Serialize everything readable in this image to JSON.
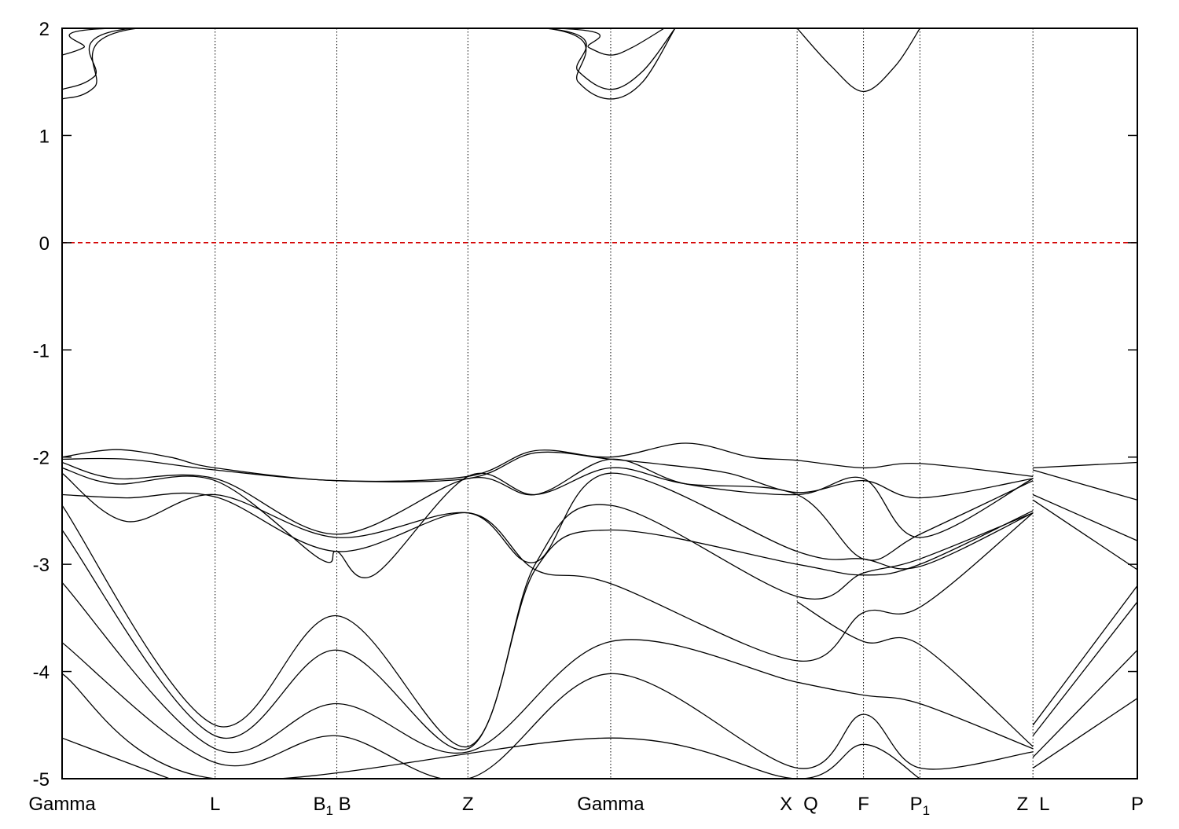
{
  "chart_data": {
    "type": "line",
    "title": "",
    "xlabel": "",
    "ylabel": "",
    "ylim": [
      -5,
      2
    ],
    "yticks": [
      "2",
      "1",
      "0",
      "-1",
      "-2",
      "-3",
      "-4",
      "-5"
    ],
    "ytick_values": [
      2,
      1,
      0,
      -1,
      -2,
      -3,
      -4,
      -5
    ],
    "grid": "vertical dotted lines at high-symmetry points",
    "fermi_level": 0,
    "kpoints": [
      {
        "label": "Gamma",
        "x": 0.0
      },
      {
        "label": "L",
        "x": 0.1423
      },
      {
        "label": "B",
        "sub": "1",
        "x": 0.2555,
        "label_after": " B"
      },
      {
        "label": "Z",
        "x": 0.3774
      },
      {
        "label": "Gamma",
        "x": 0.5102
      },
      {
        "label": "X",
        "x": 0.6836,
        "label_align": "end"
      },
      {
        "label": "Q",
        "x": 0.6836,
        "label_align": "start"
      },
      {
        "label": "F",
        "x": 0.7453
      },
      {
        "label": "P",
        "sub": "1",
        "x": 0.7978
      },
      {
        "label": "Z",
        "x": 0.9029,
        "label_align": "end"
      },
      {
        "label": "L",
        "x": 0.9029,
        "label_align": "start"
      },
      {
        "label": "P",
        "x": 1.0
      }
    ],
    "series": [
      {
        "values": [
          [
            0,
            1.75
          ],
          [
            0.02,
            1.82
          ],
          [
            0.045,
            2.0
          ],
          [
            0.46,
            2.0
          ],
          [
            0.49,
            1.82
          ],
          [
            0.5102,
            1.75
          ],
          [
            0.53,
            1.82
          ],
          [
            0.56,
            2.0
          ]
        ]
      },
      {
        "values": [
          [
            0,
            1.43
          ],
          [
            0.03,
            1.55
          ],
          [
            0.065,
            2.0
          ],
          [
            0.45,
            2.0
          ],
          [
            0.48,
            1.6
          ],
          [
            0.5102,
            1.43
          ],
          [
            0.54,
            1.6
          ],
          [
            0.57,
            2.0
          ]
        ]
      },
      {
        "values": [
          [
            0,
            1.34
          ],
          [
            0.03,
            1.45
          ],
          [
            0.07,
            2.0
          ],
          [
            0.45,
            2.0
          ],
          [
            0.48,
            1.5
          ],
          [
            0.5102,
            1.34
          ],
          [
            0.54,
            1.5
          ],
          [
            0.57,
            2.0
          ]
        ]
      },
      {
        "values": [
          [
            0.6836,
            2.0
          ],
          [
            0.715,
            1.65
          ],
          [
            0.7453,
            1.41
          ],
          [
            0.775,
            1.65
          ],
          [
            0.7978,
            2.0
          ]
        ]
      },
      {
        "values": [
          [
            0,
            -2.0
          ],
          [
            0.05,
            -1.93
          ],
          [
            0.1,
            -2.0
          ],
          [
            0.1423,
            -2.1
          ],
          [
            0.2555,
            -2.22
          ],
          [
            0.3774,
            -2.18
          ],
          [
            0.44,
            -1.94
          ],
          [
            0.5102,
            -2.0
          ],
          [
            0.58,
            -1.87
          ],
          [
            0.64,
            -2.0
          ],
          [
            0.6836,
            -2.03
          ],
          [
            0.7453,
            -2.1
          ],
          [
            0.7978,
            -2.06
          ],
          [
            0.9029,
            -2.18
          ]
        ]
      },
      {
        "values": [
          [
            0,
            -2.02
          ],
          [
            0.06,
            -2.02
          ],
          [
            0.1423,
            -2.12
          ],
          [
            0.2555,
            -2.22
          ],
          [
            0.3774,
            -2.2
          ],
          [
            0.44,
            -1.96
          ],
          [
            0.5102,
            -2.02
          ],
          [
            0.56,
            -2.07
          ],
          [
            0.62,
            -2.15
          ],
          [
            0.6836,
            -2.33
          ],
          [
            0.7453,
            -2.22
          ],
          [
            0.7978,
            -2.38
          ],
          [
            0.9029,
            -2.2
          ]
        ]
      },
      {
        "values": [
          [
            0,
            -2.05
          ],
          [
            0.05,
            -2.2
          ],
          [
            0.1423,
            -2.2
          ],
          [
            0.2555,
            -2.72
          ],
          [
            0.3774,
            -2.2
          ],
          [
            0.44,
            -2.35
          ],
          [
            0.5102,
            -2.02
          ],
          [
            0.58,
            -2.25
          ],
          [
            0.6836,
            -2.35
          ],
          [
            0.7453,
            -2.2
          ],
          [
            0.7978,
            -2.75
          ],
          [
            0.9029,
            -2.2
          ]
        ]
      },
      {
        "values": [
          [
            0,
            -2.1
          ],
          [
            0.05,
            -2.25
          ],
          [
            0.1423,
            -2.22
          ],
          [
            0.24,
            -2.95
          ],
          [
            0.2555,
            -2.88
          ],
          [
            0.29,
            -3.1
          ],
          [
            0.3774,
            -2.18
          ],
          [
            0.44,
            -2.35
          ],
          [
            0.5102,
            -2.1
          ],
          [
            0.58,
            -2.25
          ],
          [
            0.6836,
            -2.35
          ],
          [
            0.7453,
            -2.95
          ],
          [
            0.7978,
            -2.72
          ],
          [
            0.9029,
            -2.22
          ]
        ]
      },
      {
        "values": [
          [
            0,
            -2.15
          ],
          [
            0.06,
            -2.6
          ],
          [
            0.1423,
            -2.35
          ],
          [
            0.2555,
            -2.75
          ],
          [
            0.3774,
            -2.52
          ],
          [
            0.44,
            -2.98
          ],
          [
            0.5102,
            -2.15
          ],
          [
            0.6836,
            -2.88
          ],
          [
            0.7453,
            -2.95
          ],
          [
            0.7978,
            -3.02
          ],
          [
            0.9029,
            -2.52
          ]
        ]
      },
      {
        "values": [
          [
            0,
            -2.35
          ],
          [
            0.06,
            -2.38
          ],
          [
            0.1423,
            -2.37
          ],
          [
            0.2555,
            -2.88
          ],
          [
            0.3774,
            -2.52
          ],
          [
            0.44,
            -3.05
          ],
          [
            0.5102,
            -3.18
          ],
          [
            0.6836,
            -3.9
          ],
          [
            0.7453,
            -3.45
          ],
          [
            0.7978,
            -3.4
          ],
          [
            0.9029,
            -2.52
          ]
        ]
      },
      {
        "values": [
          [
            0,
            -2.45
          ],
          [
            0.1423,
            -4.5
          ],
          [
            0.2555,
            -3.48
          ],
          [
            0.3774,
            -4.7
          ],
          [
            0.44,
            -3.0
          ],
          [
            0.5102,
            -2.45
          ],
          [
            0.6836,
            -3.3
          ],
          [
            0.7453,
            -3.08
          ],
          [
            0.7978,
            -2.95
          ],
          [
            0.9029,
            -2.52
          ]
        ]
      },
      {
        "values": [
          [
            0,
            -2.68
          ],
          [
            0.1423,
            -4.6
          ],
          [
            0.2555,
            -3.8
          ],
          [
            0.3774,
            -4.72
          ],
          [
            0.44,
            -3.05
          ],
          [
            0.5102,
            -2.68
          ],
          [
            0.6836,
            -3.0
          ],
          [
            0.7453,
            -3.1
          ],
          [
            0.7978,
            -3.0
          ],
          [
            0.9029,
            -2.5
          ]
        ]
      },
      {
        "values": [
          [
            0,
            -3.17
          ],
          [
            0.1423,
            -4.72
          ],
          [
            0.2555,
            -4.3
          ],
          [
            0.3774,
            -4.75
          ],
          [
            0.5102,
            -3.72
          ],
          [
            0.6836,
            -4.1
          ],
          [
            0.7453,
            -4.22
          ],
          [
            0.7978,
            -4.3
          ],
          [
            0.9029,
            -4.72
          ]
        ]
      },
      {
        "values": [
          [
            0,
            -3.73
          ],
          [
            0.1423,
            -4.85
          ],
          [
            0.2555,
            -4.6
          ],
          [
            0.3774,
            -5.0
          ],
          [
            0.5102,
            -4.02
          ],
          [
            0.6836,
            -4.9
          ],
          [
            0.7453,
            -4.4
          ],
          [
            0.7978,
            -4.9
          ],
          [
            0.9029,
            -4.75
          ]
        ]
      },
      {
        "values": [
          [
            0,
            -4.02
          ],
          [
            0.1423,
            -5.0
          ],
          [
            0.5102,
            -4.62
          ],
          [
            0.6836,
            -5.0
          ],
          [
            0.7453,
            -4.68
          ],
          [
            0.7978,
            -5.0
          ]
        ]
      },
      {
        "values": [
          [
            0,
            -4.62
          ],
          [
            0.1,
            -5.0
          ]
        ]
      },
      {
        "values": [
          [
            0.6836,
            -3.35
          ],
          [
            0.7453,
            -3.72
          ],
          [
            0.7978,
            -3.75
          ],
          [
            0.9029,
            -4.7
          ]
        ]
      },
      {
        "values": [
          [
            0.9029,
            -2.1
          ],
          [
            1.0,
            -2.05
          ]
        ]
      },
      {
        "values": [
          [
            0.9029,
            -2.12
          ],
          [
            1.0,
            -2.4
          ]
        ]
      },
      {
        "values": [
          [
            0.9029,
            -2.35
          ],
          [
            1.0,
            -2.78
          ]
        ]
      },
      {
        "values": [
          [
            0.9029,
            -2.4
          ],
          [
            1.0,
            -3.05
          ]
        ]
      },
      {
        "values": [
          [
            0.9029,
            -4.5
          ],
          [
            1.0,
            -3.2
          ]
        ]
      },
      {
        "values": [
          [
            0.9029,
            -4.6
          ],
          [
            1.0,
            -3.35
          ]
        ]
      },
      {
        "values": [
          [
            0.9029,
            -4.8
          ],
          [
            1.0,
            -3.8
          ]
        ]
      },
      {
        "values": [
          [
            0.9029,
            -4.9
          ],
          [
            1.0,
            -4.25
          ]
        ]
      }
    ]
  }
}
